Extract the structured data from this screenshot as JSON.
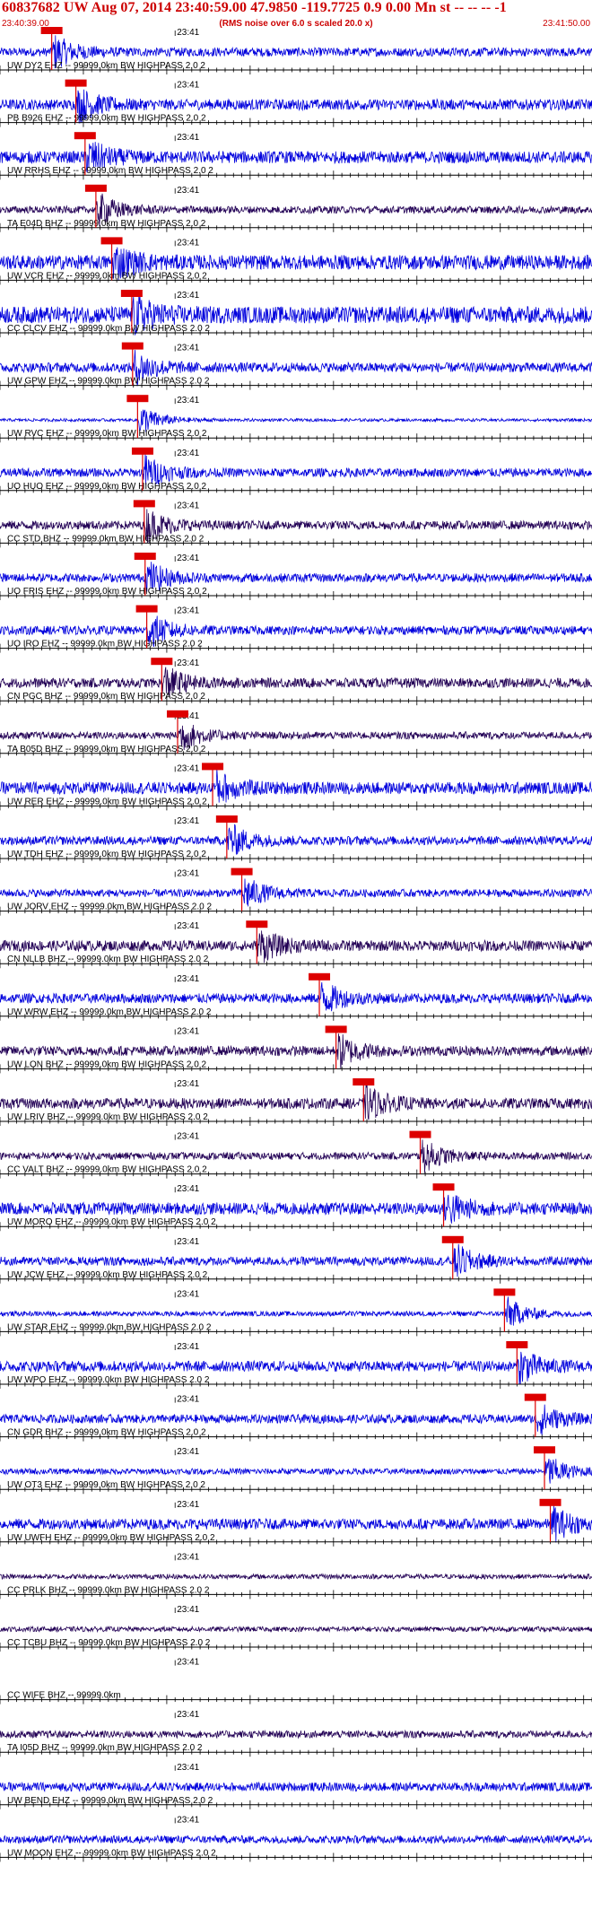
{
  "header": {
    "title": "60837682 UW Aug 07, 2014 23:40:59.00   47.9850 -119.7725  0.9 0.00 Mn st -- -- --   -1",
    "start_time": "23:40:39.00",
    "note": "(RMS noise over 6.0 s scaled 20.0 x)",
    "end_time": "23:41:50.00"
  },
  "chart_data": {
    "type": "line",
    "title": "60837682 UW Aug 07, 2014 23:40:59.00   47.9850 -119.7725  0.9 0.00 Mn st -- -- --   -1",
    "x_range_seconds": [
      0,
      71
    ],
    "minute_label": "23:41",
    "minute_mark_seconds": 21,
    "colors": {
      "blue": "#0000dd",
      "dark": "#220055",
      "pick": "#dd0000",
      "axis": "#000000"
    },
    "traces": [
      {
        "station": "UW DY2 EHZ -- 99999.0km BW  HIGHPASS  2.0  2",
        "color": "blue",
        "amp": 0.18,
        "pick_s": 6.2
      },
      {
        "station": "PB B926 EHZ -- 99999.0km BW  HIGHPASS  2.0  2",
        "color": "blue",
        "amp": 0.22,
        "pick_s": 9.1
      },
      {
        "station": "UW RRHS EHZ -- 99999.0km BW  HIGHPASS  2.0  2",
        "color": "blue",
        "amp": 0.25,
        "pick_s": 10.2
      },
      {
        "station": "TA E04D BHZ -- 99999.0km BW  HIGHPASS  2.0  2",
        "color": "dark",
        "amp": 0.15,
        "pick_s": 11.5
      },
      {
        "station": "UW VCR EHZ -- 99999.0km BW  HIGHPASS  2.0  2",
        "color": "blue",
        "amp": 0.3,
        "pick_s": 13.4
      },
      {
        "station": "CC CLCV EHZ -- 99999.0km BW  HIGHPASS  2.0  2",
        "color": "blue",
        "amp": 0.35,
        "pick_s": 15.8
      },
      {
        "station": "UW GPW EHZ -- 99999.0km BW  HIGHPASS  2.0  2",
        "color": "blue",
        "amp": 0.2,
        "pick_s": 15.9
      },
      {
        "station": "UW RVC EHZ -- 99999.0km BW  HIGHPASS  2.0  2",
        "color": "blue",
        "amp": 0.06,
        "pick_s": 16.5
      },
      {
        "station": "UO HUO EHZ -- 99999.0km BW  HIGHPASS  2.0  2",
        "color": "blue",
        "amp": 0.18,
        "pick_s": 17.1
      },
      {
        "station": "CC STD BHZ -- 99999.0km BW  HIGHPASS  2.0  2",
        "color": "dark",
        "amp": 0.18,
        "pick_s": 17.3
      },
      {
        "station": "UO FRIS EHZ -- 99999.0km BW  HIGHPASS  2.0  2",
        "color": "blue",
        "amp": 0.18,
        "pick_s": 17.4
      },
      {
        "station": "UO IRO EHZ -- 99999.0km BW  HIGHPASS  2.0  2",
        "color": "blue",
        "amp": 0.18,
        "pick_s": 17.6
      },
      {
        "station": "CN PGC BHZ -- 99999.0km BW  HIGHPASS  2.0  2",
        "color": "dark",
        "amp": 0.2,
        "pick_s": 19.4
      },
      {
        "station": "TA B05D BHZ -- 99999.0km BW  HIGHPASS  2.0  2",
        "color": "dark",
        "amp": 0.15,
        "pick_s": 21.3
      },
      {
        "station": "UW RER EHZ -- 99999.0km BW  HIGHPASS  2.0  2",
        "color": "blue",
        "amp": 0.25,
        "pick_s": 25.5
      },
      {
        "station": "UW TDH EHZ -- 99999.0km BW  HIGHPASS  2.0  2",
        "color": "blue",
        "amp": 0.18,
        "pick_s": 27.2
      },
      {
        "station": "UW JORV EHZ -- 99999.0km BW  HIGHPASS  2.0  2",
        "color": "blue",
        "amp": 0.16,
        "pick_s": 29.0
      },
      {
        "station": "CN NLLB BHZ -- 99999.0km BW  HIGHPASS  2.0  2",
        "color": "dark",
        "amp": 0.22,
        "pick_s": 30.8
      },
      {
        "station": "UW WRW EHZ -- 99999.0km BW  HIGHPASS  2.0  2",
        "color": "blue",
        "amp": 0.2,
        "pick_s": 38.3
      },
      {
        "station": "UW LON BHZ -- 99999.0km BW  HIGHPASS  2.0  2",
        "color": "dark",
        "amp": 0.2,
        "pick_s": 40.3
      },
      {
        "station": "UW LRIV BHZ -- 99999.0km BW  HIGHPASS  2.0  2",
        "color": "dark",
        "amp": 0.22,
        "pick_s": 43.6
      },
      {
        "station": "CC VALT BHZ -- 99999.0km BW  HIGHPASS  2.0  2",
        "color": "dark",
        "amp": 0.15,
        "pick_s": 50.4
      },
      {
        "station": "UW MORO EHZ -- 99999.0km BW  HIGHPASS  2.0  2",
        "color": "blue",
        "amp": 0.25,
        "pick_s": 53.2
      },
      {
        "station": "UW JCW EHZ -- 99999.0km BW  HIGHPASS  2.0  2",
        "color": "blue",
        "amp": 0.18,
        "pick_s": 54.3
      },
      {
        "station": "UW STAR EHZ -- 99999.0km BW  HIGHPASS  2.0  2",
        "color": "blue",
        "amp": 0.1,
        "pick_s": 60.5
      },
      {
        "station": "UW WPO EHZ -- 99999.0km BW  HIGHPASS  2.0  2",
        "color": "blue",
        "amp": 0.22,
        "pick_s": 62.0
      },
      {
        "station": "CN GDR BHZ -- 99999.0km BW  HIGHPASS  2.0  2",
        "color": "blue",
        "amp": 0.18,
        "pick_s": 64.2
      },
      {
        "station": "UW OT3 EHZ -- 99999.0km BW  HIGHPASS  2.0  2",
        "color": "blue",
        "amp": 0.12,
        "pick_s": 65.3
      },
      {
        "station": "UW UWFH EHZ -- 99999.0km BW  HIGHPASS  2.0  2",
        "color": "blue",
        "amp": 0.22,
        "pick_s": 66.0
      },
      {
        "station": "CC PRLK BHZ -- 99999.0km BW  HIGHPASS  2.0  2",
        "color": "dark",
        "amp": 0.1
      },
      {
        "station": "CC TCBU BHZ -- 99999.0km BW  HIGHPASS  2.0  2",
        "color": "dark",
        "amp": 0.1
      },
      {
        "station": "CC WIFE BHZ -- 99999.0km",
        "color": "dark",
        "amp": 0.0
      },
      {
        "station": "TA I05D BHZ -- 99999.0km BW  HIGHPASS  2.0  2",
        "color": "dark",
        "amp": 0.15
      },
      {
        "station": "UW BEND EHZ -- 99999.0km BW  HIGHPASS  2.0  2",
        "color": "blue",
        "amp": 0.18
      },
      {
        "station": "UW MOON EHZ -- 99999.0km BW  HIGHPASS  2.0  2",
        "color": "blue",
        "amp": 0.16
      }
    ]
  }
}
